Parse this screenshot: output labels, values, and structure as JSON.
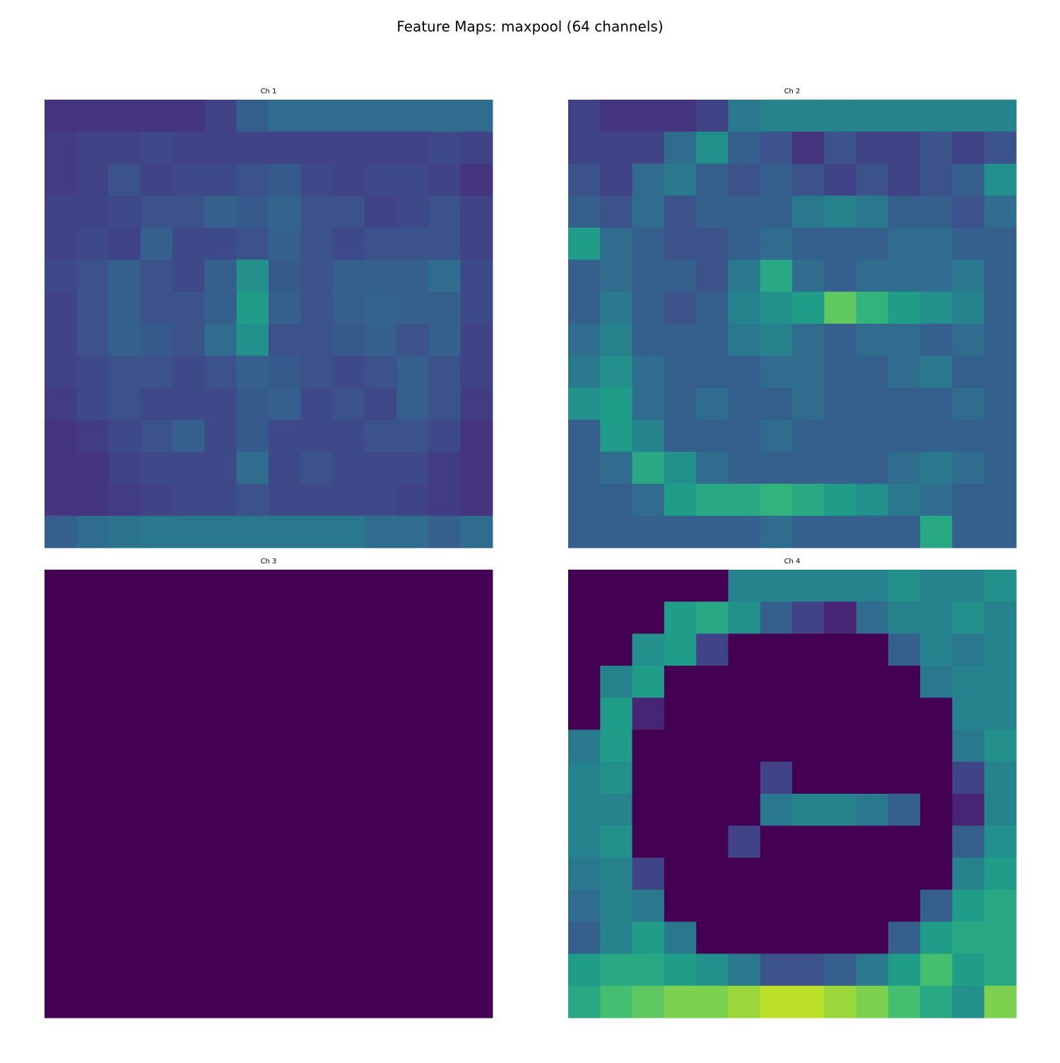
{
  "title": "Feature Maps: maxpool (64 channels)",
  "chart_data": [
    {
      "type": "heatmap",
      "title": "Ch 1",
      "colormap": "viridis",
      "values": [
        [
          0.15,
          0.15,
          0.15,
          0.15,
          0.15,
          0.2,
          0.3,
          0.35,
          0.35,
          0.35,
          0.35,
          0.35,
          0.35,
          0.35
        ],
        [
          0.18,
          0.2,
          0.2,
          0.22,
          0.2,
          0.2,
          0.2,
          0.2,
          0.2,
          0.2,
          0.2,
          0.2,
          0.22,
          0.2
        ],
        [
          0.18,
          0.2,
          0.25,
          0.2,
          0.22,
          0.22,
          0.25,
          0.28,
          0.22,
          0.2,
          0.22,
          0.22,
          0.2,
          0.15
        ],
        [
          0.2,
          0.2,
          0.22,
          0.25,
          0.25,
          0.3,
          0.28,
          0.32,
          0.25,
          0.25,
          0.2,
          0.22,
          0.25,
          0.2
        ],
        [
          0.2,
          0.22,
          0.2,
          0.3,
          0.22,
          0.22,
          0.25,
          0.3,
          0.25,
          0.22,
          0.25,
          0.25,
          0.25,
          0.2
        ],
        [
          0.22,
          0.25,
          0.3,
          0.25,
          0.22,
          0.3,
          0.5,
          0.28,
          0.25,
          0.3,
          0.3,
          0.3,
          0.35,
          0.22
        ],
        [
          0.2,
          0.25,
          0.3,
          0.25,
          0.25,
          0.3,
          0.55,
          0.3,
          0.25,
          0.3,
          0.32,
          0.3,
          0.3,
          0.22
        ],
        [
          0.2,
          0.25,
          0.3,
          0.28,
          0.25,
          0.35,
          0.5,
          0.25,
          0.25,
          0.28,
          0.3,
          0.25,
          0.3,
          0.2
        ],
        [
          0.2,
          0.22,
          0.25,
          0.25,
          0.22,
          0.25,
          0.3,
          0.28,
          0.25,
          0.22,
          0.25,
          0.3,
          0.25,
          0.2
        ],
        [
          0.18,
          0.22,
          0.25,
          0.22,
          0.22,
          0.22,
          0.28,
          0.3,
          0.22,
          0.25,
          0.22,
          0.3,
          0.25,
          0.18
        ],
        [
          0.15,
          0.18,
          0.22,
          0.25,
          0.3,
          0.22,
          0.28,
          0.22,
          0.22,
          0.22,
          0.25,
          0.25,
          0.22,
          0.15
        ],
        [
          0.15,
          0.15,
          0.2,
          0.22,
          0.22,
          0.22,
          0.35,
          0.22,
          0.25,
          0.22,
          0.22,
          0.22,
          0.18,
          0.15
        ],
        [
          0.15,
          0.15,
          0.18,
          0.2,
          0.22,
          0.22,
          0.25,
          0.22,
          0.22,
          0.22,
          0.22,
          0.2,
          0.18,
          0.15
        ],
        [
          0.3,
          0.35,
          0.38,
          0.4,
          0.4,
          0.4,
          0.4,
          0.4,
          0.4,
          0.4,
          0.35,
          0.35,
          0.3,
          0.35
        ]
      ]
    },
    {
      "type": "heatmap",
      "title": "Ch 2",
      "colormap": "viridis",
      "values": [
        [
          0.2,
          0.15,
          0.15,
          0.15,
          0.2,
          0.4,
          0.45,
          0.45,
          0.45,
          0.45,
          0.45,
          0.45,
          0.45,
          0.45
        ],
        [
          0.2,
          0.2,
          0.2,
          0.35,
          0.5,
          0.3,
          0.25,
          0.15,
          0.25,
          0.2,
          0.2,
          0.25,
          0.2,
          0.25
        ],
        [
          0.25,
          0.2,
          0.35,
          0.4,
          0.3,
          0.25,
          0.3,
          0.25,
          0.2,
          0.25,
          0.2,
          0.25,
          0.3,
          0.5
        ],
        [
          0.3,
          0.25,
          0.35,
          0.25,
          0.3,
          0.3,
          0.3,
          0.4,
          0.45,
          0.4,
          0.3,
          0.3,
          0.25,
          0.35
        ],
        [
          0.55,
          0.35,
          0.3,
          0.25,
          0.25,
          0.3,
          0.35,
          0.3,
          0.3,
          0.3,
          0.35,
          0.35,
          0.3,
          0.3
        ],
        [
          0.3,
          0.35,
          0.3,
          0.3,
          0.25,
          0.4,
          0.6,
          0.35,
          0.3,
          0.35,
          0.35,
          0.35,
          0.4,
          0.3
        ],
        [
          0.3,
          0.4,
          0.3,
          0.25,
          0.3,
          0.45,
          0.5,
          0.55,
          0.75,
          0.65,
          0.55,
          0.5,
          0.45,
          0.3
        ],
        [
          0.35,
          0.45,
          0.3,
          0.3,
          0.3,
          0.4,
          0.45,
          0.35,
          0.3,
          0.35,
          0.35,
          0.3,
          0.35,
          0.3
        ],
        [
          0.4,
          0.5,
          0.35,
          0.3,
          0.3,
          0.3,
          0.35,
          0.35,
          0.3,
          0.3,
          0.35,
          0.4,
          0.3,
          0.3
        ],
        [
          0.5,
          0.55,
          0.35,
          0.3,
          0.35,
          0.3,
          0.3,
          0.35,
          0.3,
          0.3,
          0.3,
          0.3,
          0.35,
          0.3
        ],
        [
          0.3,
          0.55,
          0.45,
          0.3,
          0.3,
          0.3,
          0.35,
          0.3,
          0.3,
          0.3,
          0.3,
          0.3,
          0.3,
          0.3
        ],
        [
          0.3,
          0.35,
          0.6,
          0.5,
          0.35,
          0.3,
          0.3,
          0.3,
          0.3,
          0.3,
          0.35,
          0.4,
          0.35,
          0.3
        ],
        [
          0.3,
          0.3,
          0.35,
          0.55,
          0.6,
          0.6,
          0.65,
          0.6,
          0.55,
          0.5,
          0.4,
          0.35,
          0.3,
          0.3
        ],
        [
          0.3,
          0.3,
          0.3,
          0.3,
          0.3,
          0.3,
          0.35,
          0.3,
          0.3,
          0.3,
          0.3,
          0.6,
          0.3,
          0.3
        ]
      ]
    },
    {
      "type": "heatmap",
      "title": "Ch 3",
      "colormap": "viridis",
      "values": [
        [
          0,
          0,
          0,
          0,
          0,
          0,
          0,
          0,
          0,
          0,
          0,
          0,
          0,
          0
        ],
        [
          0,
          0,
          0,
          0,
          0,
          0,
          0,
          0,
          0,
          0,
          0,
          0,
          0,
          0
        ],
        [
          0,
          0,
          0,
          0,
          0,
          0,
          0,
          0,
          0,
          0,
          0,
          0,
          0,
          0
        ],
        [
          0,
          0,
          0,
          0,
          0,
          0,
          0,
          0,
          0,
          0,
          0,
          0,
          0,
          0
        ],
        [
          0,
          0,
          0,
          0,
          0,
          0,
          0,
          0,
          0,
          0,
          0,
          0,
          0,
          0
        ],
        [
          0,
          0,
          0,
          0,
          0,
          0,
          0,
          0,
          0,
          0,
          0,
          0,
          0,
          0
        ],
        [
          0,
          0,
          0,
          0,
          0,
          0,
          0,
          0,
          0,
          0,
          0,
          0,
          0,
          0
        ],
        [
          0,
          0,
          0,
          0,
          0,
          0,
          0,
          0,
          0,
          0,
          0,
          0,
          0,
          0
        ],
        [
          0,
          0,
          0,
          0,
          0,
          0,
          0,
          0,
          0,
          0,
          0,
          0,
          0,
          0
        ],
        [
          0,
          0,
          0,
          0,
          0,
          0,
          0,
          0,
          0,
          0,
          0,
          0,
          0,
          0
        ],
        [
          0,
          0,
          0,
          0,
          0,
          0,
          0,
          0,
          0,
          0,
          0,
          0,
          0,
          0
        ],
        [
          0,
          0,
          0,
          0,
          0,
          0,
          0,
          0,
          0,
          0,
          0,
          0,
          0,
          0
        ],
        [
          0,
          0,
          0,
          0,
          0,
          0,
          0,
          0,
          0,
          0,
          0,
          0,
          0,
          0
        ],
        [
          0,
          0,
          0,
          0,
          0,
          0,
          0,
          0,
          0,
          0,
          0,
          0,
          0,
          0
        ]
      ]
    },
    {
      "type": "heatmap",
      "title": "Ch 4",
      "colormap": "viridis",
      "values": [
        [
          0,
          0,
          0,
          0,
          0,
          0.45,
          0.45,
          0.45,
          0.45,
          0.45,
          0.5,
          0.45,
          0.45,
          0.5
        ],
        [
          0,
          0,
          0,
          0.55,
          0.6,
          0.5,
          0.3,
          0.2,
          0.1,
          0.35,
          0.45,
          0.45,
          0.5,
          0.45
        ],
        [
          0,
          0,
          0.5,
          0.55,
          0.2,
          0,
          0,
          0,
          0,
          0,
          0.3,
          0.45,
          0.4,
          0.45
        ],
        [
          0,
          0.45,
          0.55,
          0,
          0,
          0,
          0,
          0,
          0,
          0,
          0,
          0.4,
          0.45,
          0.45
        ],
        [
          0,
          0.55,
          0.1,
          0,
          0,
          0,
          0,
          0,
          0,
          0,
          0,
          0,
          0.45,
          0.45
        ],
        [
          0.4,
          0.55,
          0,
          0,
          0,
          0,
          0,
          0,
          0,
          0,
          0,
          0,
          0.4,
          0.5
        ],
        [
          0.45,
          0.5,
          0,
          0,
          0,
          0,
          0.2,
          0,
          0,
          0,
          0,
          0,
          0.2,
          0.45
        ],
        [
          0.45,
          0.45,
          0,
          0,
          0,
          0,
          0.4,
          0.45,
          0.45,
          0.4,
          0.3,
          0,
          0.1,
          0.45
        ],
        [
          0.45,
          0.5,
          0,
          0,
          0,
          0.2,
          0,
          0,
          0,
          0,
          0,
          0,
          0.3,
          0.5
        ],
        [
          0.4,
          0.45,
          0.2,
          0,
          0,
          0,
          0,
          0,
          0,
          0,
          0,
          0,
          0.45,
          0.55
        ],
        [
          0.35,
          0.45,
          0.4,
          0,
          0,
          0,
          0,
          0,
          0,
          0,
          0,
          0.3,
          0.55,
          0.6
        ],
        [
          0.3,
          0.45,
          0.55,
          0.4,
          0,
          0,
          0,
          0,
          0,
          0,
          0.3,
          0.55,
          0.6,
          0.6
        ],
        [
          0.55,
          0.6,
          0.6,
          0.55,
          0.5,
          0.4,
          0.25,
          0.25,
          0.3,
          0.4,
          0.55,
          0.7,
          0.55,
          0.6
        ],
        [
          0.6,
          0.7,
          0.75,
          0.8,
          0.8,
          0.85,
          0.9,
          0.9,
          0.85,
          0.8,
          0.7,
          0.6,
          0.5,
          0.8
        ]
      ]
    }
  ]
}
